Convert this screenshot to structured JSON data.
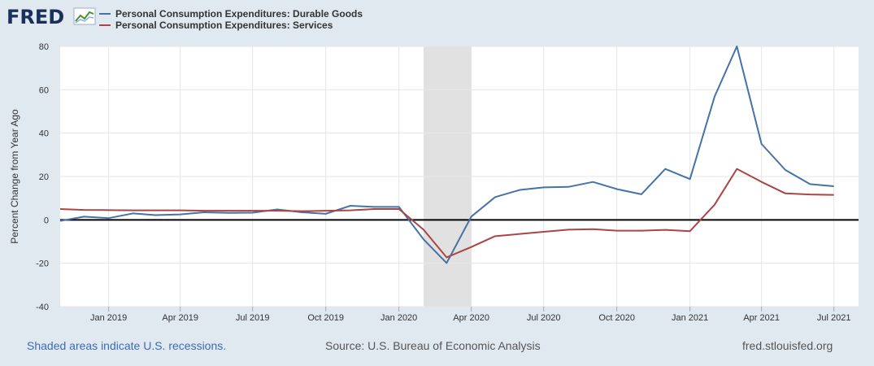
{
  "header": {
    "logo_text": "FRED",
    "logo_icon": "fred-chart-icon"
  },
  "chart_data": {
    "type": "line",
    "ylabel": "Percent Change from Year Ago",
    "ylim": [
      -40,
      80
    ],
    "yticks": [
      -40,
      -20,
      0,
      20,
      40,
      60,
      80
    ],
    "xlim": [
      "2018-11-01",
      "2021-08-01"
    ],
    "xticks": [
      {
        "date": "2019-01-01",
        "label": "Jan 2019"
      },
      {
        "date": "2019-04-01",
        "label": "Apr 2019"
      },
      {
        "date": "2019-07-01",
        "label": "Jul 2019"
      },
      {
        "date": "2019-10-01",
        "label": "Oct 2019"
      },
      {
        "date": "2020-01-01",
        "label": "Jan 2020"
      },
      {
        "date": "2020-04-01",
        "label": "Apr 2020"
      },
      {
        "date": "2020-07-01",
        "label": "Jul 2020"
      },
      {
        "date": "2020-10-01",
        "label": "Oct 2020"
      },
      {
        "date": "2021-01-01",
        "label": "Jan 2021"
      },
      {
        "date": "2021-04-01",
        "label": "Apr 2021"
      },
      {
        "date": "2021-07-01",
        "label": "Jul 2021"
      }
    ],
    "grid": true,
    "recessions": [
      {
        "start": "2020-02-01",
        "end": "2020-04-01"
      }
    ],
    "x": [
      "2018-11-01",
      "2018-12-01",
      "2019-01-01",
      "2019-02-01",
      "2019-03-01",
      "2019-04-01",
      "2019-05-01",
      "2019-06-01",
      "2019-07-01",
      "2019-08-01",
      "2019-09-01",
      "2019-10-01",
      "2019-11-01",
      "2019-12-01",
      "2020-01-01",
      "2020-02-01",
      "2020-03-01",
      "2020-04-01",
      "2020-05-01",
      "2020-06-01",
      "2020-07-01",
      "2020-08-01",
      "2020-09-01",
      "2020-10-01",
      "2020-11-01",
      "2020-12-01",
      "2021-01-01",
      "2021-02-01",
      "2021-03-01",
      "2021-04-01",
      "2021-05-01",
      "2021-06-01",
      "2021-07-01"
    ],
    "series": [
      {
        "name": "Personal Consumption Expenditures: Durable Goods",
        "color": "#4572a7",
        "values": [
          -0.5,
          1.5,
          0.8,
          3.0,
          2.2,
          2.5,
          3.5,
          3.2,
          3.3,
          4.8,
          3.5,
          2.8,
          6.5,
          6.0,
          6.0,
          -9.0,
          -19.9,
          1.5,
          10.5,
          13.8,
          15.0,
          15.2,
          17.5,
          14.2,
          11.8,
          23.5,
          18.8,
          56.9,
          80.0,
          35.0,
          23.0,
          16.5,
          15.5
        ]
      },
      {
        "name": "Personal Consumption Expenditures: Services",
        "color": "#aa4643",
        "values": [
          5.0,
          4.6,
          4.5,
          4.4,
          4.4,
          4.4,
          4.2,
          4.2,
          4.2,
          4.2,
          4.0,
          4.2,
          4.4,
          5.0,
          5.0,
          -4.5,
          -17.3,
          -12.5,
          -7.5,
          -6.5,
          -5.5,
          -4.5,
          -4.3,
          -5.0,
          -5.0,
          -4.6,
          -5.2,
          7.0,
          23.5,
          17.5,
          12.2,
          11.7,
          11.5
        ]
      }
    ]
  },
  "footer": {
    "recession_note": "Shaded areas indicate U.S. recessions.",
    "source": "Source: U.S. Bureau of Economic Analysis",
    "site": "fred.stlouisfed.org"
  }
}
